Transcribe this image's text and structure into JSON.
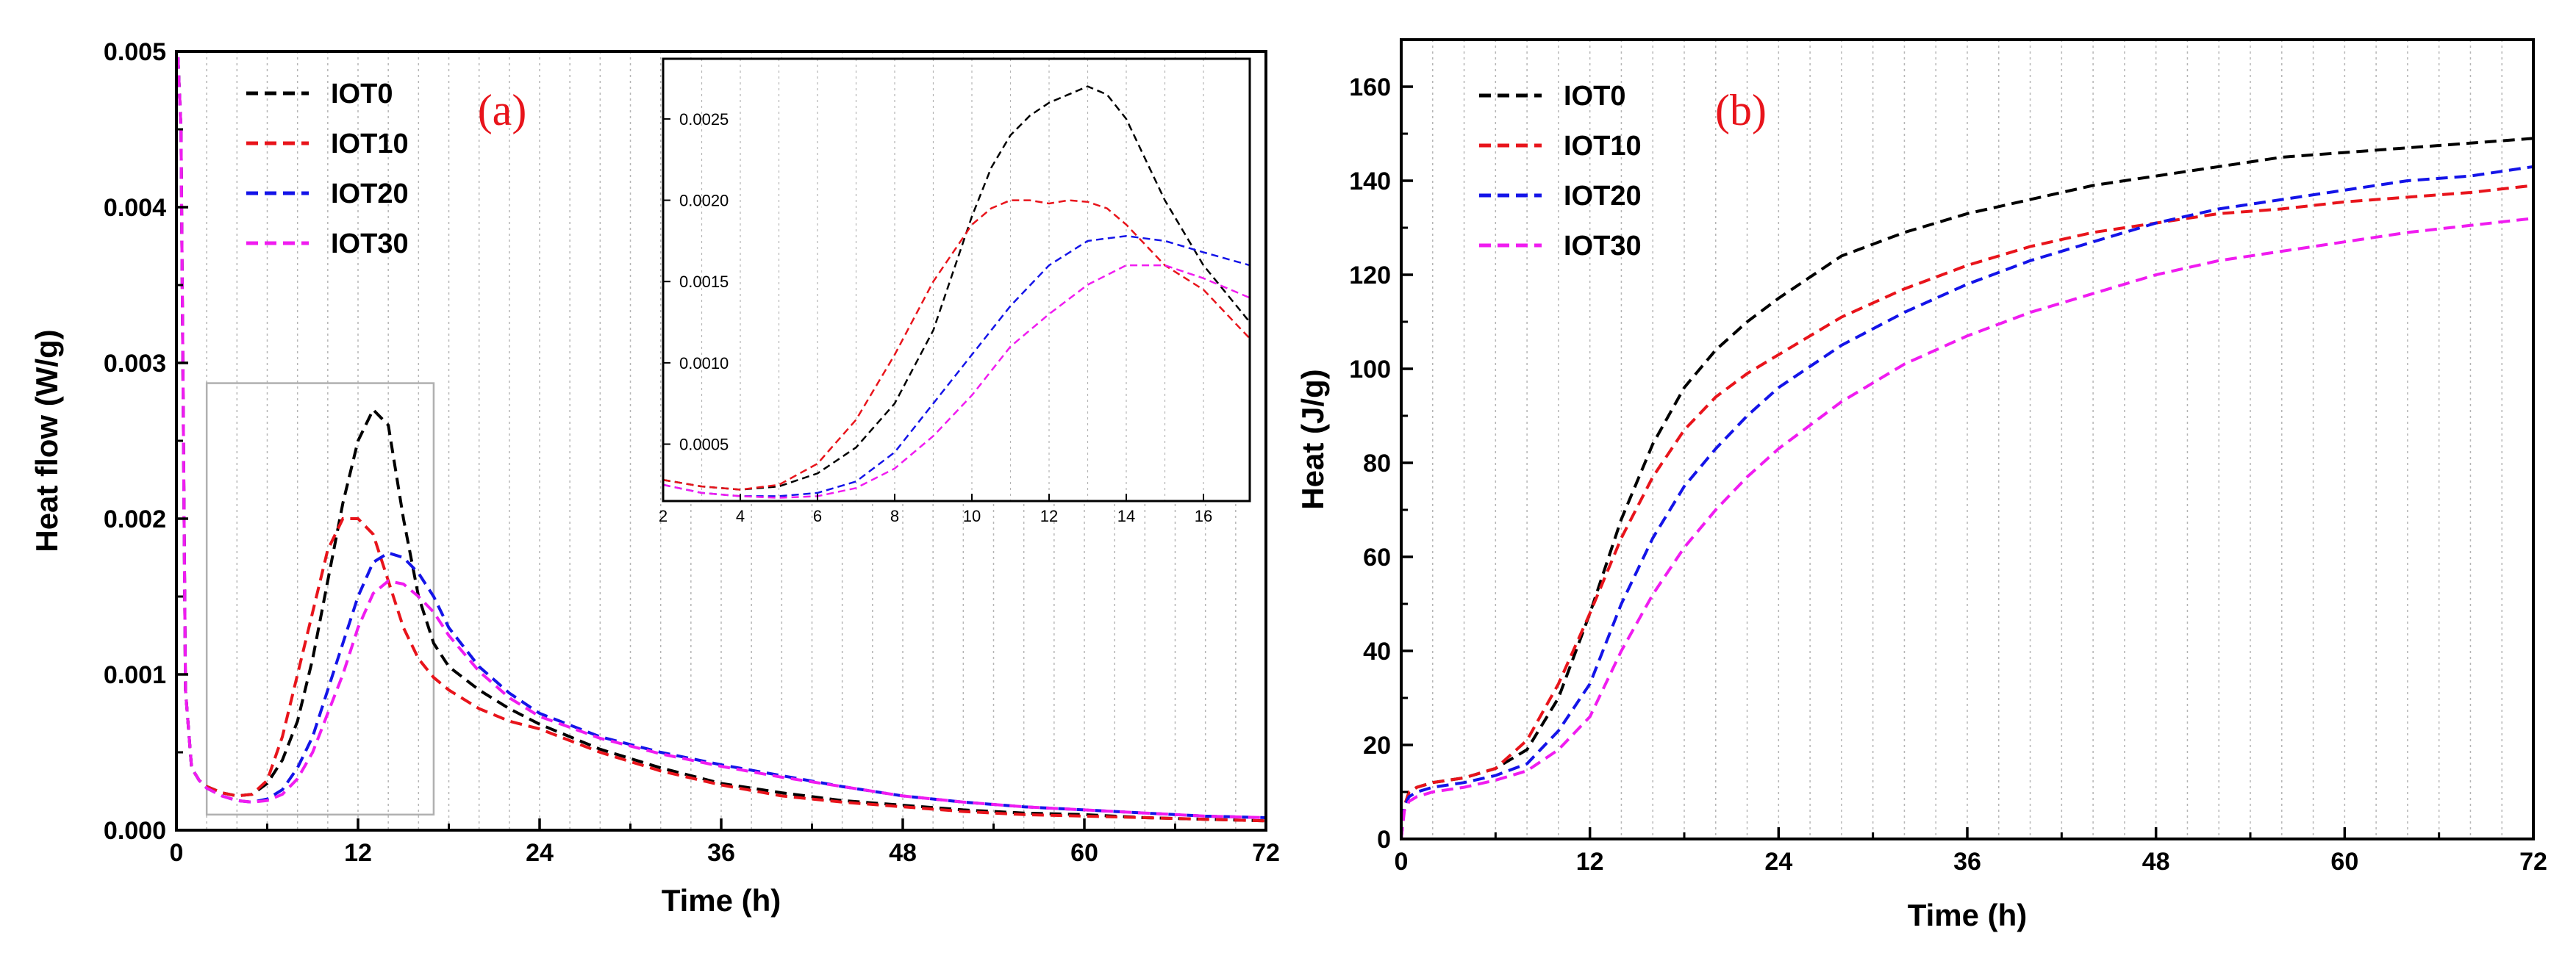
{
  "chart_data": [
    {
      "type": "line",
      "panel_label": "(a)",
      "xlabel": "Time (h)",
      "ylabel": "Heat flow (W/g)",
      "xlim": [
        0,
        72
      ],
      "ylim": [
        0,
        0.005
      ],
      "xticks": [
        0,
        12,
        24,
        36,
        48,
        60,
        72
      ],
      "yticks": [
        0.0,
        0.001,
        0.002,
        0.003,
        0.004,
        0.005
      ],
      "ytick_labels": [
        "0.000",
        "0.001",
        "0.002",
        "0.003",
        "0.004",
        "0.005"
      ],
      "grid": "vertical dotted",
      "legend_position": "top-left",
      "series": [
        {
          "name": "IOT0",
          "color": "#000000",
          "x": [
            0,
            0.3,
            0.6,
            1,
            1.5,
            2,
            3,
            4,
            5,
            6,
            7,
            8,
            9,
            10,
            11,
            12,
            13,
            14,
            15,
            16,
            17,
            18,
            20,
            22,
            24,
            28,
            32,
            36,
            40,
            44,
            48,
            52,
            56,
            60,
            64,
            68,
            72
          ],
          "y": [
            0.0052,
            0.0045,
            0.0009,
            0.0004,
            0.00032,
            0.00028,
            0.00024,
            0.00022,
            0.00023,
            0.0003,
            0.00045,
            0.0007,
            0.0011,
            0.0016,
            0.0021,
            0.0025,
            0.0027,
            0.0026,
            0.002,
            0.0015,
            0.0012,
            0.00105,
            0.0009,
            0.00078,
            0.00068,
            0.00052,
            0.0004,
            0.0003,
            0.00024,
            0.00019,
            0.00016,
            0.00013,
            0.00011,
            0.0001,
            8e-05,
            7e-05,
            6e-05
          ]
        },
        {
          "name": "IOT10",
          "color": "#e8141b",
          "x": [
            0,
            0.3,
            0.6,
            1,
            1.5,
            2,
            3,
            4,
            5,
            6,
            7,
            8,
            9,
            10,
            11,
            12,
            13,
            14,
            15,
            16,
            17,
            18,
            20,
            22,
            24,
            28,
            32,
            36,
            40,
            44,
            48,
            52,
            56,
            60,
            64,
            68,
            72
          ],
          "y": [
            0.0052,
            0.0045,
            0.0009,
            0.0004,
            0.00032,
            0.00028,
            0.00024,
            0.00022,
            0.00023,
            0.00032,
            0.0006,
            0.001,
            0.0014,
            0.0018,
            0.002,
            0.002,
            0.0019,
            0.0016,
            0.0013,
            0.0011,
            0.00098,
            0.0009,
            0.00078,
            0.0007,
            0.00065,
            0.0005,
            0.00038,
            0.00029,
            0.00022,
            0.00018,
            0.00015,
            0.00012,
            0.0001,
            9e-05,
            8e-05,
            7e-05,
            6e-05
          ]
        },
        {
          "name": "IOT20",
          "color": "#1414e8",
          "x": [
            0,
            0.3,
            0.6,
            1,
            1.5,
            2,
            3,
            4,
            5,
            6,
            7,
            8,
            9,
            10,
            11,
            12,
            13,
            14,
            15,
            16,
            17,
            18,
            20,
            22,
            24,
            28,
            32,
            36,
            40,
            44,
            48,
            52,
            56,
            60,
            64,
            68,
            72
          ],
          "y": [
            0.0052,
            0.0045,
            0.0009,
            0.0004,
            0.00032,
            0.00027,
            0.00022,
            0.00019,
            0.00018,
            0.0002,
            0.00026,
            0.0004,
            0.0006,
            0.0009,
            0.0012,
            0.0015,
            0.00172,
            0.00178,
            0.00175,
            0.00165,
            0.0015,
            0.0013,
            0.00105,
            0.00088,
            0.00075,
            0.0006,
            0.0005,
            0.00042,
            0.00035,
            0.00028,
            0.00022,
            0.00018,
            0.00015,
            0.00013,
            0.00011,
            9e-05,
            8e-05
          ]
        },
        {
          "name": "IOT30",
          "color": "#f01cf0",
          "x": [
            0,
            0.3,
            0.6,
            1,
            1.5,
            2,
            3,
            4,
            5,
            6,
            7,
            8,
            9,
            10,
            11,
            12,
            13,
            14,
            15,
            16,
            17,
            18,
            20,
            22,
            24,
            28,
            32,
            36,
            40,
            44,
            48,
            52,
            56,
            60,
            64,
            68,
            72
          ],
          "y": [
            0.0052,
            0.0045,
            0.0009,
            0.0004,
            0.00032,
            0.00027,
            0.00022,
            0.00019,
            0.00018,
            0.00019,
            0.00023,
            0.00033,
            0.0005,
            0.00075,
            0.001,
            0.0013,
            0.00152,
            0.0016,
            0.00158,
            0.0015,
            0.0014,
            0.00125,
            0.00102,
            0.00085,
            0.00073,
            0.00059,
            0.00049,
            0.00041,
            0.00034,
            0.00028,
            0.00022,
            0.00018,
            0.00015,
            0.00013,
            0.00011,
            9e-05,
            8e-05
          ]
        }
      ],
      "zoom_region": {
        "xlim": [
          2,
          17
        ],
        "ylim": [
          0.0001,
          0.00287
        ]
      },
      "inset": {
        "xlim": [
          2,
          17.2
        ],
        "ylim": [
          0.00015,
          0.00287
        ],
        "xticks": [
          2,
          4,
          6,
          8,
          10,
          12,
          14,
          16
        ],
        "yticks": [
          0.0005,
          0.001,
          0.0015,
          0.002,
          0.0025
        ],
        "ytick_labels": [
          "0.0005",
          "0.0010",
          "0.0015",
          "0.0020",
          "0.0025"
        ],
        "series": [
          {
            "name": "IOT0",
            "color": "#000000",
            "x": [
              2,
              3,
              4,
              5,
              6,
              7,
              8,
              9,
              10,
              10.5,
              11,
              11.5,
              12,
              12.5,
              13,
              13.5,
              14,
              15,
              16,
              17.2
            ],
            "y": [
              0.00028,
              0.00024,
              0.00022,
              0.00024,
              0.00032,
              0.00048,
              0.00075,
              0.0012,
              0.0019,
              0.0022,
              0.0024,
              0.00252,
              0.0026,
              0.00265,
              0.0027,
              0.00265,
              0.0025,
              0.002,
              0.0016,
              0.00125
            ]
          },
          {
            "name": "IOT10",
            "color": "#e8141b",
            "x": [
              2,
              3,
              4,
              5,
              6,
              7,
              8,
              9,
              10,
              10.5,
              11,
              11.5,
              12,
              12.5,
              13,
              13.5,
              14,
              15,
              16,
              17.2
            ],
            "y": [
              0.00028,
              0.00024,
              0.00022,
              0.00025,
              0.00038,
              0.00065,
              0.00105,
              0.0015,
              0.00185,
              0.00195,
              0.002,
              0.002,
              0.00198,
              0.002,
              0.00199,
              0.00195,
              0.00185,
              0.0016,
              0.00145,
              0.00115
            ]
          },
          {
            "name": "IOT20",
            "color": "#1414e8",
            "x": [
              2,
              3,
              4,
              5,
              6,
              7,
              8,
              9,
              10,
              11,
              12,
              13,
              14,
              15,
              16,
              17.2
            ],
            "y": [
              0.00025,
              0.0002,
              0.00018,
              0.00018,
              0.0002,
              0.00027,
              0.00045,
              0.00075,
              0.00105,
              0.00135,
              0.0016,
              0.00175,
              0.00178,
              0.00175,
              0.00168,
              0.0016
            ]
          },
          {
            "name": "IOT30",
            "color": "#f01cf0",
            "x": [
              2,
              3,
              4,
              5,
              6,
              7,
              8,
              9,
              10,
              11,
              12,
              13,
              14,
              15,
              16,
              17.2
            ],
            "y": [
              0.00025,
              0.0002,
              0.00018,
              0.00017,
              0.00018,
              0.00023,
              0.00035,
              0.00055,
              0.0008,
              0.0011,
              0.0013,
              0.00148,
              0.0016,
              0.0016,
              0.00152,
              0.0014
            ]
          }
        ]
      }
    },
    {
      "type": "line",
      "panel_label": "(b)",
      "xlabel": "Time (h)",
      "ylabel": "Heat (J/g)",
      "xlim": [
        0,
        72
      ],
      "ylim": [
        0,
        170
      ],
      "xticks": [
        0,
        12,
        24,
        36,
        48,
        60,
        72
      ],
      "yticks": [
        0,
        20,
        40,
        60,
        80,
        100,
        120,
        140,
        160
      ],
      "grid": "vertical dotted",
      "legend_position": "top-left",
      "series": [
        {
          "name": "IOT0",
          "color": "#000000",
          "x": [
            0,
            0.2,
            0.5,
            1,
            2,
            4,
            6,
            8,
            10,
            12,
            14,
            16,
            18,
            20,
            22,
            24,
            28,
            32,
            36,
            40,
            44,
            48,
            52,
            56,
            60,
            64,
            68,
            72
          ],
          "y": [
            0,
            7,
            10,
            11,
            12,
            13,
            15,
            19,
            30,
            48,
            68,
            84,
            96,
            104,
            110,
            115,
            124,
            129,
            133,
            136,
            139,
            141,
            143,
            145,
            146,
            147,
            148,
            149
          ]
        },
        {
          "name": "IOT10",
          "color": "#e8141b",
          "x": [
            0,
            0.2,
            0.5,
            1,
            2,
            4,
            6,
            8,
            10,
            12,
            14,
            16,
            18,
            20,
            22,
            24,
            28,
            32,
            36,
            40,
            44,
            48,
            52,
            56,
            60,
            64,
            68,
            72
          ],
          "y": [
            0,
            7,
            10,
            11,
            12,
            13,
            15,
            21,
            33,
            48,
            64,
            77,
            87,
            94,
            99,
            103,
            111,
            117,
            122,
            126,
            129,
            131,
            133,
            134,
            135.5,
            136.5,
            137.5,
            139
          ]
        },
        {
          "name": "IOT20",
          "color": "#1414e8",
          "x": [
            0,
            0.2,
            0.5,
            1,
            2,
            4,
            6,
            8,
            10,
            12,
            14,
            16,
            18,
            20,
            22,
            24,
            28,
            32,
            36,
            40,
            44,
            48,
            52,
            56,
            60,
            64,
            68,
            72
          ],
          "y": [
            0,
            7,
            9,
            10,
            11,
            12,
            13.5,
            16,
            23,
            33,
            50,
            64,
            75,
            83,
            90,
            96,
            105,
            112,
            118,
            123,
            127,
            131,
            134,
            136,
            138,
            140,
            141,
            143
          ]
        },
        {
          "name": "IOT30",
          "color": "#f01cf0",
          "x": [
            0,
            0.2,
            0.5,
            1,
            2,
            4,
            6,
            8,
            10,
            12,
            14,
            16,
            18,
            20,
            22,
            24,
            28,
            32,
            36,
            40,
            44,
            48,
            52,
            56,
            60,
            64,
            68,
            72
          ],
          "y": [
            0,
            6,
            8,
            9,
            10,
            11,
            12.5,
            14.5,
            19,
            26,
            40,
            52,
            62,
            70,
            77,
            83,
            93,
            101,
            107,
            112,
            116,
            120,
            123,
            125,
            127,
            129,
            130.5,
            132
          ]
        }
      ]
    }
  ]
}
